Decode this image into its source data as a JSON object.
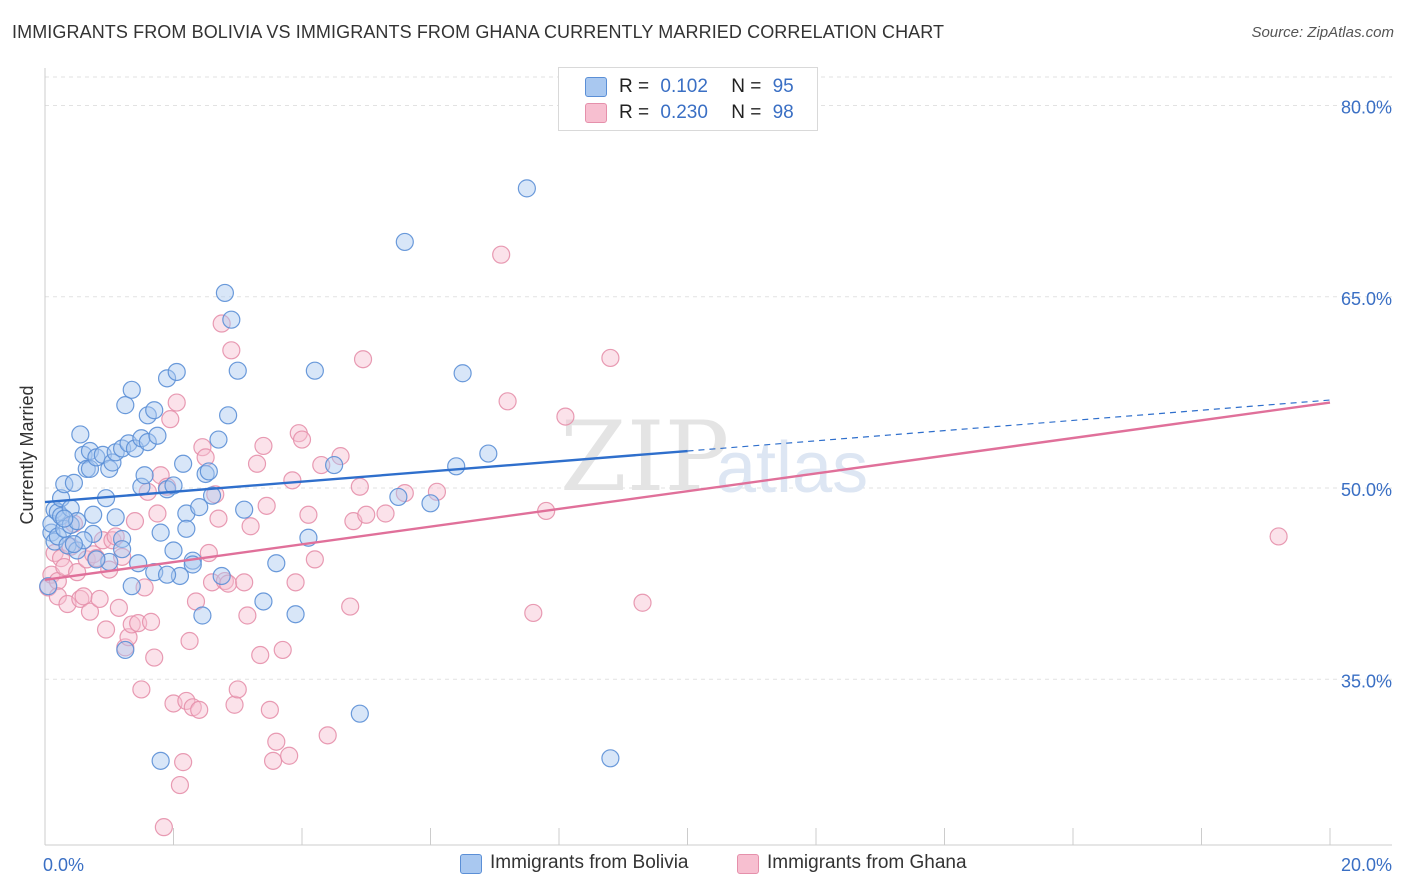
{
  "header": {
    "title": "IMMIGRANTS FROM BOLIVIA VS IMMIGRANTS FROM GHANA CURRENTLY MARRIED CORRELATION CHART",
    "source": "Source: ZipAtlas.com"
  },
  "watermark": {
    "zip": "ZIP",
    "atlas": "atlas"
  },
  "legend": {
    "rows": [
      {
        "r_label": "R =",
        "r_value": "0.102",
        "n_label": "N =",
        "n_value": "95"
      },
      {
        "r_label": "R =",
        "r_value": "0.230",
        "n_label": "N =",
        "n_value": "98"
      }
    ]
  },
  "bottom_legend": {
    "bolivia": "Immigrants from Bolivia",
    "ghana": "Immigrants from Ghana"
  },
  "colors": {
    "bolivia_fill": "#a9c8f0",
    "bolivia_stroke": "#5b8fd6",
    "bolivia_line": "#2f6fcc",
    "ghana_fill": "#f7bfd0",
    "ghana_stroke": "#e590ab",
    "ghana_line": "#e0709a",
    "tick_label": "#3a6fc4",
    "grid": "#e2e2e2"
  },
  "chart_data": {
    "type": "scatter",
    "title": "IMMIGRANTS FROM BOLIVIA VS IMMIGRANTS FROM GHANA CURRENTLY MARRIED CORRELATION CHART",
    "xlabel": "",
    "ylabel": "Currently Married",
    "xlim": [
      0,
      20
    ],
    "ylim": [
      22,
      82
    ],
    "x_tick_labels": [
      "0.0%",
      "20.0%"
    ],
    "y_ticks": [
      35,
      50,
      65,
      80
    ],
    "y_tick_labels": [
      "35.0%",
      "50.0%",
      "65.0%",
      "80.0%"
    ],
    "grid": true,
    "legend_position": "top-center",
    "series": [
      {
        "name": "Immigrants from Bolivia",
        "R": 0.102,
        "N": 95,
        "trend": {
          "x0": 0,
          "y0": 48.9,
          "x1": 10,
          "y1": 52.9,
          "dashed_to_x": 20,
          "dashed_to_y": 56.9
        },
        "points": [
          [
            0.1,
            46.5
          ],
          [
            0.1,
            47.2
          ],
          [
            0.15,
            48.3
          ],
          [
            0.15,
            45.8
          ],
          [
            0.2,
            48.1
          ],
          [
            0.2,
            46.2
          ],
          [
            0.25,
            47.8
          ],
          [
            0.25,
            49.2
          ],
          [
            0.3,
            50.3
          ],
          [
            0.3,
            46.8
          ],
          [
            0.35,
            45.5
          ],
          [
            0.4,
            48.4
          ],
          [
            0.4,
            47.1
          ],
          [
            0.45,
            50.4
          ],
          [
            0.5,
            45.1
          ],
          [
            0.5,
            47.4
          ],
          [
            0.55,
            54.2
          ],
          [
            0.6,
            52.6
          ],
          [
            0.65,
            51.5
          ],
          [
            0.7,
            52.9
          ],
          [
            0.7,
            51.5
          ],
          [
            0.75,
            46.4
          ],
          [
            0.75,
            47.9
          ],
          [
            0.8,
            52.4
          ],
          [
            0.9,
            52.6
          ],
          [
            0.95,
            49.2
          ],
          [
            1.0,
            44.2
          ],
          [
            1.0,
            51.5
          ],
          [
            1.05,
            52.0
          ],
          [
            1.1,
            52.8
          ],
          [
            1.2,
            46.0
          ],
          [
            1.2,
            45.2
          ],
          [
            1.2,
            53.1
          ],
          [
            1.25,
            56.5
          ],
          [
            1.3,
            53.5
          ],
          [
            1.35,
            42.3
          ],
          [
            1.35,
            57.7
          ],
          [
            1.4,
            53.1
          ],
          [
            1.45,
            44.1
          ],
          [
            1.5,
            53.9
          ],
          [
            1.5,
            50.1
          ],
          [
            1.55,
            51.0
          ],
          [
            1.6,
            53.6
          ],
          [
            1.6,
            55.7
          ],
          [
            1.7,
            43.4
          ],
          [
            1.7,
            56.1
          ],
          [
            1.75,
            54.1
          ],
          [
            1.8,
            46.5
          ],
          [
            1.9,
            49.9
          ],
          [
            1.9,
            58.6
          ],
          [
            2.0,
            50.2
          ],
          [
            2.05,
            59.1
          ],
          [
            2.1,
            43.1
          ],
          [
            2.15,
            51.9
          ],
          [
            2.2,
            48.0
          ],
          [
            2.2,
            46.8
          ],
          [
            2.3,
            44.3
          ],
          [
            2.3,
            44.0
          ],
          [
            2.4,
            48.5
          ],
          [
            2.45,
            40.0
          ],
          [
            2.5,
            51.1
          ],
          [
            2.55,
            51.3
          ],
          [
            2.6,
            49.4
          ],
          [
            2.7,
            53.8
          ],
          [
            2.75,
            43.1
          ],
          [
            2.8,
            65.3
          ],
          [
            2.85,
            55.7
          ],
          [
            2.9,
            63.2
          ],
          [
            3.0,
            59.2
          ],
          [
            3.1,
            48.3
          ],
          [
            3.4,
            41.1
          ],
          [
            3.6,
            44.1
          ],
          [
            3.9,
            40.1
          ],
          [
            4.1,
            46.1
          ],
          [
            4.2,
            59.2
          ],
          [
            4.5,
            51.8
          ],
          [
            4.9,
            32.3
          ],
          [
            5.5,
            49.3
          ],
          [
            5.6,
            69.3
          ],
          [
            6.0,
            48.8
          ],
          [
            6.4,
            51.7
          ],
          [
            6.5,
            59.0
          ],
          [
            6.9,
            52.7
          ],
          [
            7.5,
            73.5
          ],
          [
            8.8,
            28.8
          ],
          [
            1.8,
            28.6
          ],
          [
            1.25,
            37.3
          ],
          [
            1.9,
            43.2
          ],
          [
            0.6,
            45.9
          ],
          [
            0.8,
            44.4
          ],
          [
            2.0,
            45.1
          ],
          [
            0.3,
            47.6
          ],
          [
            1.1,
            47.7
          ],
          [
            0.45,
            45.6
          ],
          [
            0.05,
            42.3
          ]
        ]
      },
      {
        "name": "Immigrants from Ghana",
        "R": 0.23,
        "N": 98,
        "trend": {
          "x0": 0,
          "y0": 42.8,
          "x1": 20,
          "y1": 56.7
        },
        "points": [
          [
            0.05,
            42.2
          ],
          [
            0.1,
            43.2
          ],
          [
            0.15,
            44.9
          ],
          [
            0.2,
            42.7
          ],
          [
            0.2,
            41.5
          ],
          [
            0.25,
            44.5
          ],
          [
            0.3,
            43.8
          ],
          [
            0.35,
            40.9
          ],
          [
            0.4,
            45.4
          ],
          [
            0.45,
            47.2
          ],
          [
            0.5,
            43.4
          ],
          [
            0.55,
            41.3
          ],
          [
            0.6,
            41.5
          ],
          [
            0.65,
            44.4
          ],
          [
            0.7,
            40.3
          ],
          [
            0.75,
            44.8
          ],
          [
            0.8,
            44.5
          ],
          [
            0.85,
            41.3
          ],
          [
            0.9,
            45.9
          ],
          [
            0.95,
            38.9
          ],
          [
            1.0,
            43.6
          ],
          [
            1.05,
            45.9
          ],
          [
            1.1,
            46.2
          ],
          [
            1.15,
            40.6
          ],
          [
            1.2,
            44.6
          ],
          [
            1.25,
            37.5
          ],
          [
            1.3,
            38.3
          ],
          [
            1.35,
            39.3
          ],
          [
            1.4,
            47.4
          ],
          [
            1.45,
            39.4
          ],
          [
            1.5,
            34.2
          ],
          [
            1.55,
            42.2
          ],
          [
            1.6,
            49.7
          ],
          [
            1.65,
            39.5
          ],
          [
            1.7,
            36.7
          ],
          [
            1.75,
            48.0
          ],
          [
            1.8,
            51.0
          ],
          [
            1.85,
            23.4
          ],
          [
            1.9,
            50.1
          ],
          [
            1.95,
            55.4
          ],
          [
            2.0,
            33.1
          ],
          [
            2.05,
            56.7
          ],
          [
            2.1,
            26.7
          ],
          [
            2.15,
            28.5
          ],
          [
            2.2,
            33.3
          ],
          [
            2.25,
            38.0
          ],
          [
            2.3,
            32.8
          ],
          [
            2.35,
            41.1
          ],
          [
            2.4,
            32.6
          ],
          [
            2.45,
            53.2
          ],
          [
            2.5,
            52.4
          ],
          [
            2.55,
            44.9
          ],
          [
            2.6,
            42.6
          ],
          [
            2.65,
            49.5
          ],
          [
            2.7,
            47.6
          ],
          [
            2.75,
            62.9
          ],
          [
            2.8,
            42.7
          ],
          [
            2.85,
            42.5
          ],
          [
            2.9,
            60.8
          ],
          [
            2.95,
            33.0
          ],
          [
            3.0,
            34.2
          ],
          [
            3.1,
            42.6
          ],
          [
            3.15,
            40.0
          ],
          [
            3.2,
            47.0
          ],
          [
            3.3,
            51.9
          ],
          [
            3.35,
            36.9
          ],
          [
            3.4,
            53.3
          ],
          [
            3.45,
            48.6
          ],
          [
            3.5,
            32.6
          ],
          [
            3.55,
            28.6
          ],
          [
            3.6,
            30.1
          ],
          [
            3.7,
            37.3
          ],
          [
            3.8,
            29.0
          ],
          [
            3.85,
            50.6
          ],
          [
            3.9,
            42.6
          ],
          [
            3.95,
            54.3
          ],
          [
            4.0,
            53.8
          ],
          [
            4.1,
            47.9
          ],
          [
            4.2,
            44.4
          ],
          [
            4.3,
            51.8
          ],
          [
            4.4,
            30.6
          ],
          [
            4.6,
            52.5
          ],
          [
            4.75,
            40.7
          ],
          [
            4.8,
            47.4
          ],
          [
            4.9,
            50.1
          ],
          [
            5.0,
            47.9
          ],
          [
            5.3,
            48.0
          ],
          [
            5.6,
            49.6
          ],
          [
            6.1,
            49.7
          ],
          [
            7.1,
            68.3
          ],
          [
            7.2,
            56.8
          ],
          [
            7.6,
            40.2
          ],
          [
            7.8,
            48.2
          ],
          [
            8.1,
            55.6
          ],
          [
            8.8,
            60.2
          ],
          [
            9.3,
            41.0
          ],
          [
            19.2,
            46.2
          ],
          [
            4.95,
            60.1
          ]
        ]
      }
    ]
  }
}
